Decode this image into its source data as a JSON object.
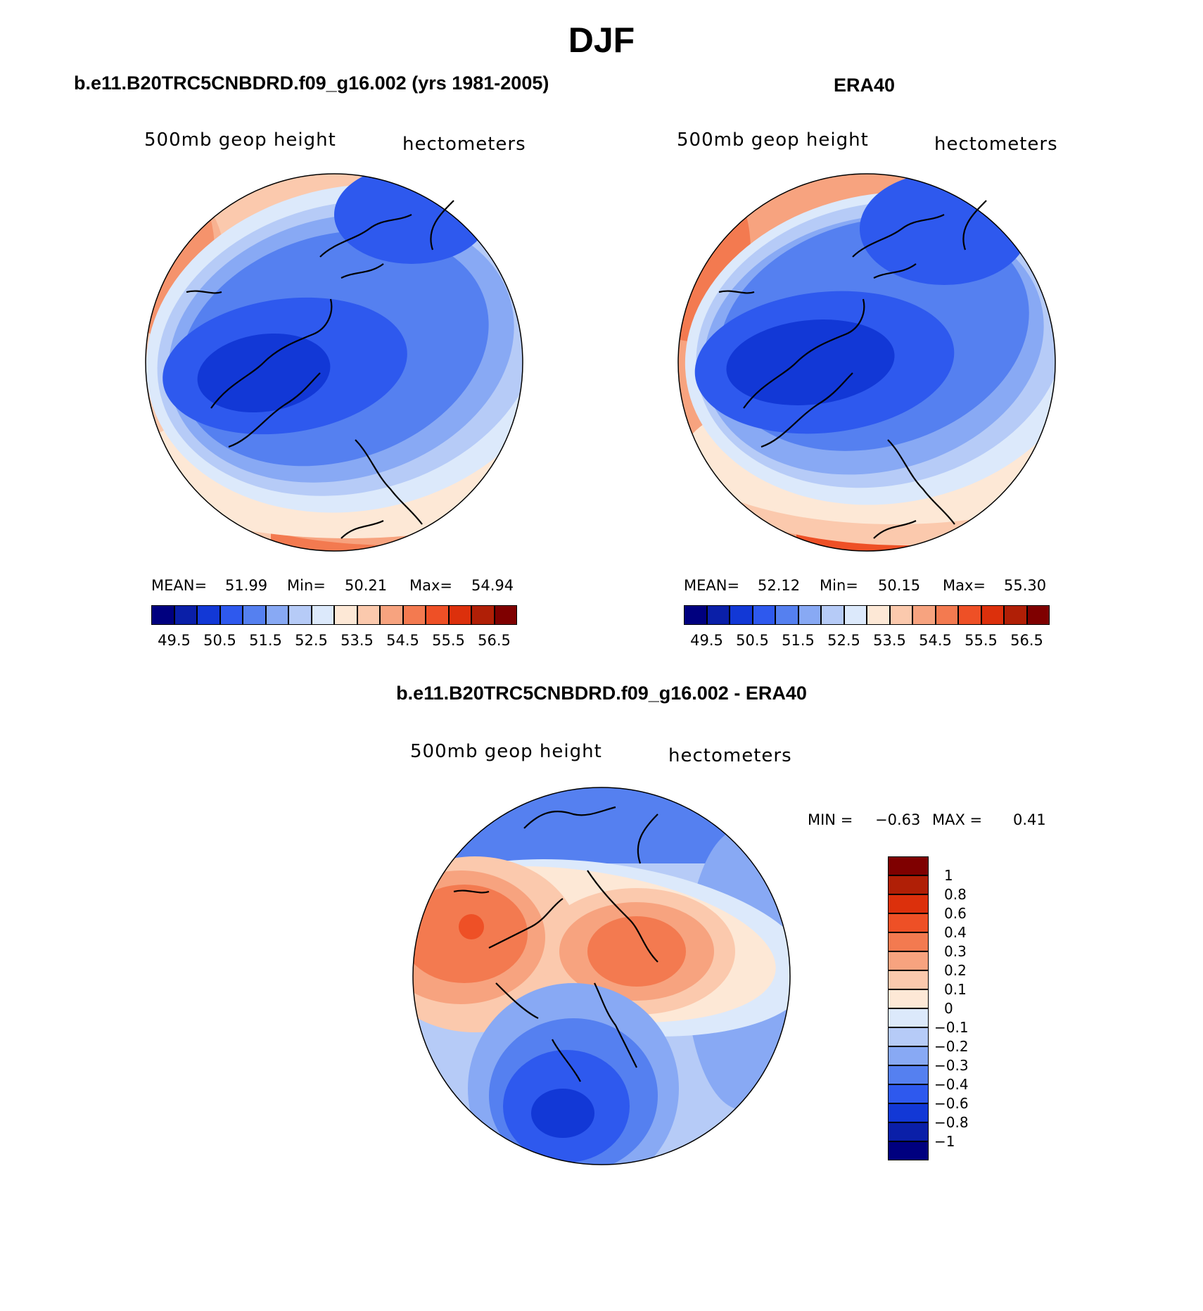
{
  "figure": {
    "title": "DJF"
  },
  "panels": [
    {
      "id": "model",
      "header": "b.e11.B20TRC5CNBDRD.f09_g16.002 (yrs 1981-2005)",
      "field_label": "500mb geop height",
      "units_label": "hectometers",
      "stats": {
        "mean_label": "MEAN=",
        "mean": "51.99",
        "min_label": "Min=",
        "min": "50.21",
        "max_label": "Max=",
        "max": "54.94"
      }
    },
    {
      "id": "obs",
      "header": "ERA40",
      "field_label": "500mb geop height",
      "units_label": "hectometers",
      "stats": {
        "mean_label": "MEAN=",
        "mean": "52.12",
        "min_label": "Min=",
        "min": "50.15",
        "max_label": "Max=",
        "max": "55.30"
      }
    },
    {
      "id": "diff",
      "header": "b.e11.B20TRC5CNBDRD.f09_g16.002 - ERA40",
      "field_label": "500mb geop height",
      "units_label": "hectometers",
      "stats": {
        "min_label": "MIN =",
        "min": "−0.63",
        "max_label": "MAX =",
        "max": "0.41"
      }
    }
  ],
  "colorbars": {
    "height_ticks": [
      "49.5",
      "50.5",
      "51.5",
      "52.5",
      "53.5",
      "54.5",
      "55.5",
      "56.5"
    ],
    "height_colors": [
      "#00007f",
      "#0a1fa8",
      "#1238d6",
      "#2e59ee",
      "#5580f0",
      "#88a9f4",
      "#b6cbf7",
      "#dce9fb",
      "#fde8d6",
      "#fbc9ad",
      "#f7a37f",
      "#f37a50",
      "#ee5026",
      "#dc300c",
      "#b01f06",
      "#7f0000"
    ],
    "diff_ticks": [
      "1",
      "0.8",
      "0.6",
      "0.4",
      "0.3",
      "0.2",
      "0.1",
      "0",
      "−0.1",
      "−0.2",
      "−0.3",
      "−0.4",
      "−0.6",
      "−0.8",
      "−1"
    ],
    "diff_colors": [
      "#7f0000",
      "#b01f06",
      "#dc300c",
      "#ee5026",
      "#f37a50",
      "#f7a37f",
      "#fbc9ad",
      "#fde8d6",
      "#dce9fb",
      "#b6cbf7",
      "#88a9f4",
      "#5580f0",
      "#2e59ee",
      "#1238d6",
      "#0a1fa8",
      "#00007f"
    ]
  },
  "map_data": {
    "projection": "north polar stereographic",
    "variable": "500mb geopotential height",
    "season": "DJF",
    "contour_levels_height": [
      49.5,
      50,
      50.5,
      51,
      51.5,
      52,
      52.5,
      53,
      53.5,
      54,
      54.5,
      55,
      55.5,
      56,
      56.5
    ],
    "contour_levels_diff": [
      -1,
      -0.8,
      -0.6,
      -0.4,
      -0.3,
      -0.2,
      -0.1,
      0,
      0.1,
      0.2,
      0.3,
      0.4,
      0.6,
      0.8,
      1
    ]
  }
}
